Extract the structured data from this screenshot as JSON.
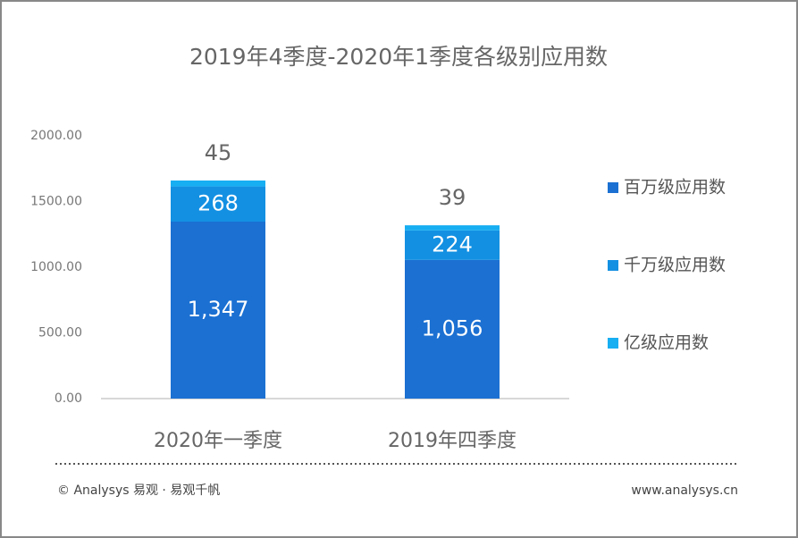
{
  "chart_data": {
    "type": "stacked-bar",
    "title": "2019年4季度-2020年1季度各级别应用数",
    "categories": [
      "2020年一季度",
      "2019年四季度"
    ],
    "series": [
      {
        "name": "百万级应用数",
        "color": "#1b70d2",
        "values": [
          1347,
          1056
        ],
        "value_labels": [
          "1,347",
          "1,056"
        ]
      },
      {
        "name": "千万级应用数",
        "color": "#1390e2",
        "values": [
          268,
          224
        ]
      },
      {
        "name": "亿级应用数",
        "color": "#17aef2",
        "values": [
          45,
          39
        ]
      }
    ],
    "ylim": [
      0,
      2000
    ],
    "yticks": [
      {
        "value": 0,
        "label": "0.00"
      },
      {
        "value": 500,
        "label": "500.00"
      },
      {
        "value": 1000,
        "label": "1000.00"
      },
      {
        "value": 1500,
        "label": "1500.00"
      },
      {
        "value": 2000,
        "label": "2000.00"
      }
    ],
    "legend": "right",
    "footer": {
      "left": "© Analysys 易观 · 易观千帆",
      "right": "www.analysys.cn"
    }
  }
}
